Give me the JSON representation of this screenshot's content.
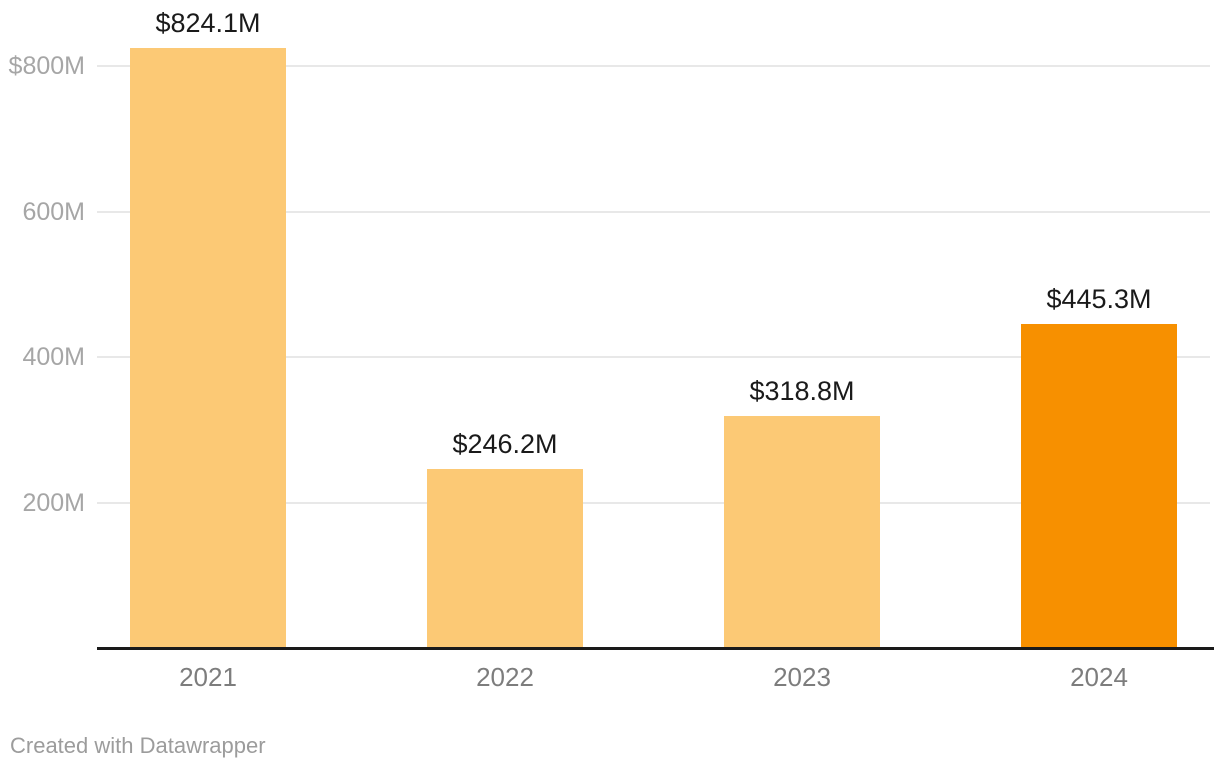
{
  "chart_data": {
    "type": "bar",
    "categories": [
      "2021",
      "2022",
      "2023",
      "2024"
    ],
    "values": [
      824.1,
      246.2,
      318.8,
      445.3
    ],
    "value_labels": [
      "$824.1M",
      "$246.2M",
      "$318.8M",
      "$445.3M"
    ],
    "bar_colors": [
      "#FCC975",
      "#FCC975",
      "#FCC975",
      "#F79000"
    ],
    "title": "",
    "xlabel": "",
    "ylabel": "",
    "ylim": [
      0,
      891
    ],
    "yticks": [
      {
        "value": 800,
        "label": "$800M"
      },
      {
        "value": 600,
        "label": "600M"
      },
      {
        "value": 400,
        "label": "400M"
      },
      {
        "value": 200,
        "label": "200M"
      }
    ],
    "grid": true,
    "legend": null
  },
  "colors": {
    "bar_default": "#FCC975",
    "bar_highlight": "#F79000",
    "gridline": "#e8e8e8",
    "axis_line": "#1a1a1a",
    "tick_text": "#a6a6a6",
    "category_text": "#7d7d7d",
    "value_text": "#1a1a1a",
    "attribution_text": "#9c9c9c"
  },
  "footer": {
    "attribution": "Created with Datawrapper"
  }
}
